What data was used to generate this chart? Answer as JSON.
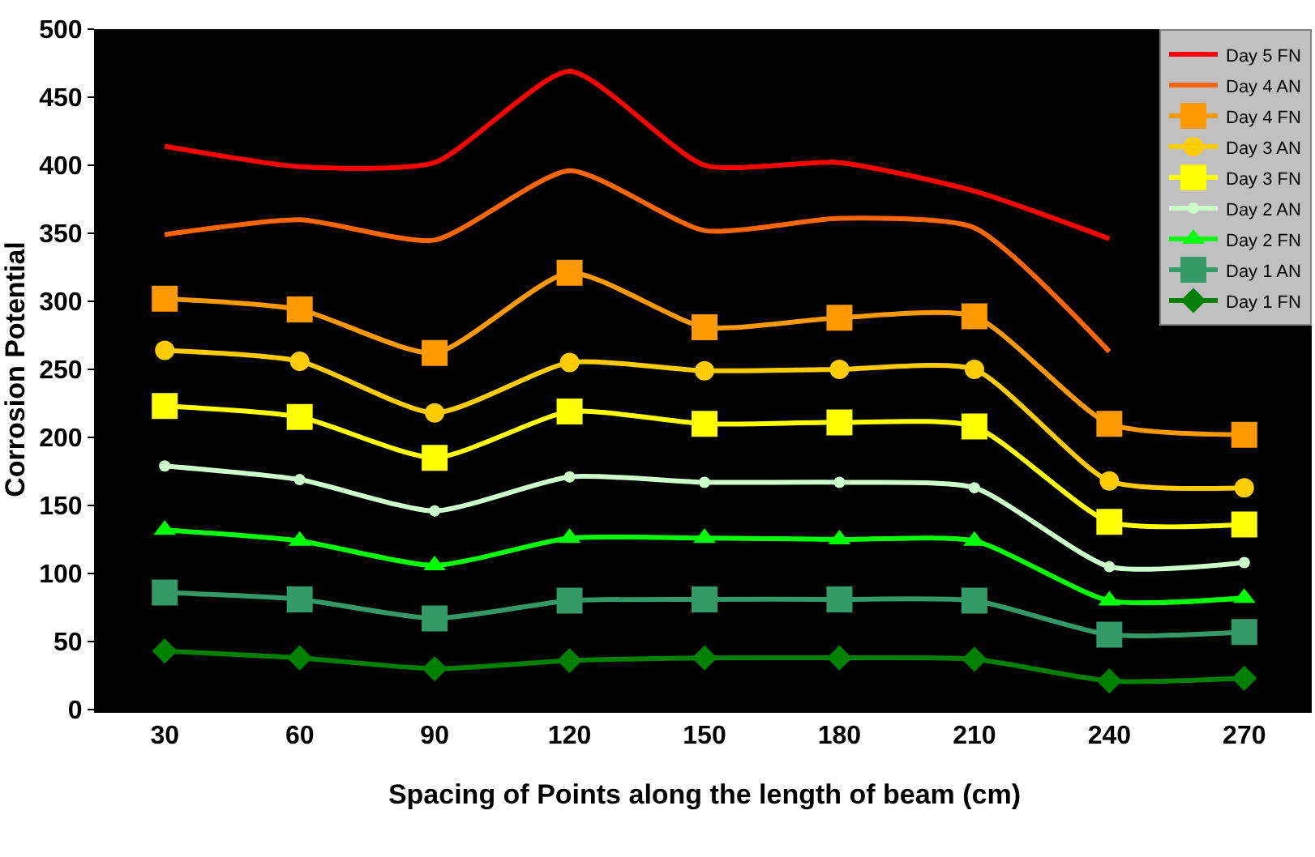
{
  "chart_data": {
    "type": "line",
    "xlabel": "Spacing of Points along the length of beam (cm)",
    "ylabel": "Corrosion Potential",
    "categories": [
      "30",
      "60",
      "90",
      "120",
      "150",
      "180",
      "210",
      "240",
      "270"
    ],
    "ylim": [
      0,
      500
    ],
    "yticks": [
      0,
      50,
      100,
      150,
      200,
      250,
      300,
      350,
      400,
      450,
      500
    ],
    "grid": false,
    "legend": "top right",
    "series": [
      {
        "name": "Day 5 FN",
        "color": "#ff0000",
        "marker": "none",
        "values": [
          414,
          399,
          402,
          469,
          400,
          402,
          381,
          346,
          null
        ]
      },
      {
        "name": "Day 4 AN",
        "color": "#ff6600",
        "marker": "none",
        "values": [
          349,
          360,
          345,
          396,
          352,
          361,
          354,
          263,
          null
        ]
      },
      {
        "name": "Day 4 FN",
        "color": "#ff9900",
        "marker": "square",
        "values": [
          302,
          294,
          262,
          321,
          281,
          288,
          289,
          210,
          202
        ]
      },
      {
        "name": "Day 3 AN",
        "color": "#ffcc00",
        "marker": "circle",
        "values": [
          264,
          256,
          218,
          255,
          249,
          250,
          250,
          168,
          163
        ]
      },
      {
        "name": "Day 3 FN",
        "color": "#ffff00",
        "marker": "square",
        "values": [
          223,
          215,
          185,
          219,
          210,
          211,
          208,
          138,
          136
        ]
      },
      {
        "name": "Day 2 AN",
        "color": "#ccffcc",
        "marker": "circle",
        "values": [
          179,
          169,
          146,
          171,
          167,
          167,
          163,
          105,
          108
        ]
      },
      {
        "name": "Day 2 FN",
        "color": "#00ff00",
        "marker": "triangle",
        "values": [
          132,
          124,
          106,
          126,
          126,
          125,
          124,
          80,
          82
        ]
      },
      {
        "name": "Day 1 AN",
        "color": "#339966",
        "marker": "square",
        "values": [
          86,
          81,
          67,
          80,
          81,
          81,
          80,
          55,
          57
        ]
      },
      {
        "name": "Day 1 FN",
        "color": "#008000",
        "marker": "diamond",
        "values": [
          43,
          38,
          30,
          36,
          38,
          38,
          37,
          21,
          23
        ]
      }
    ]
  }
}
